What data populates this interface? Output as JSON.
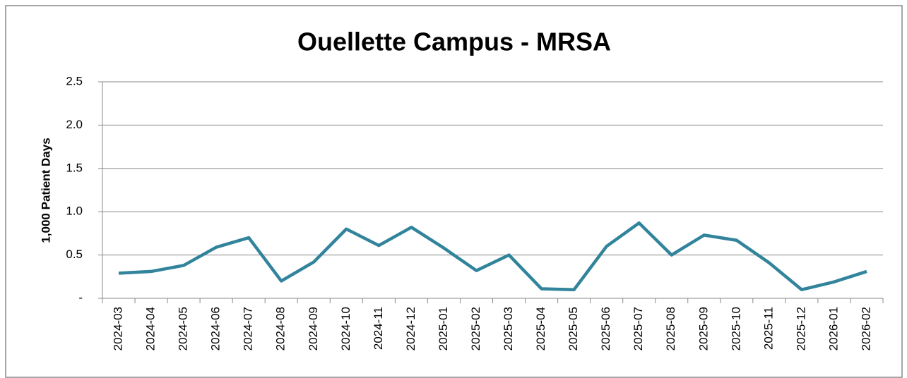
{
  "chart_data": {
    "type": "line",
    "title": "Ouellette Campus - MRSA",
    "y_label": "1,000 Patient Days",
    "categories": [
      "2024-03",
      "2024-04",
      "2024-05",
      "2024-06",
      "2024-07",
      "2024-08",
      "2024-09",
      "2024-10",
      "2024-11",
      "2024-12",
      "2025-01",
      "2025-02",
      "2025-03",
      "2025-04",
      "2025-05",
      "2025-06",
      "2025-07",
      "2025-08",
      "2025-09",
      "2025-10",
      "2025-11",
      "2025-12",
      "2026-01",
      "2026-02"
    ],
    "values": [
      0.29,
      0.31,
      0.38,
      0.59,
      0.7,
      0.2,
      0.42,
      0.8,
      0.61,
      0.82,
      0.58,
      0.32,
      0.5,
      0.11,
      0.1,
      0.6,
      0.87,
      0.5,
      0.73,
      0.67,
      0.41,
      0.1,
      0.19,
      0.31
    ],
    "color": "#31849b",
    "ylim": [
      0,
      2.5
    ],
    "yticks": [
      {
        "value": 0,
        "label": "-"
      },
      0.5,
      {
        "value": 1,
        "label": "1.0"
      },
      1.5,
      {
        "value": 2,
        "label": "2.0"
      },
      2.5
    ],
    "grid": true
  }
}
